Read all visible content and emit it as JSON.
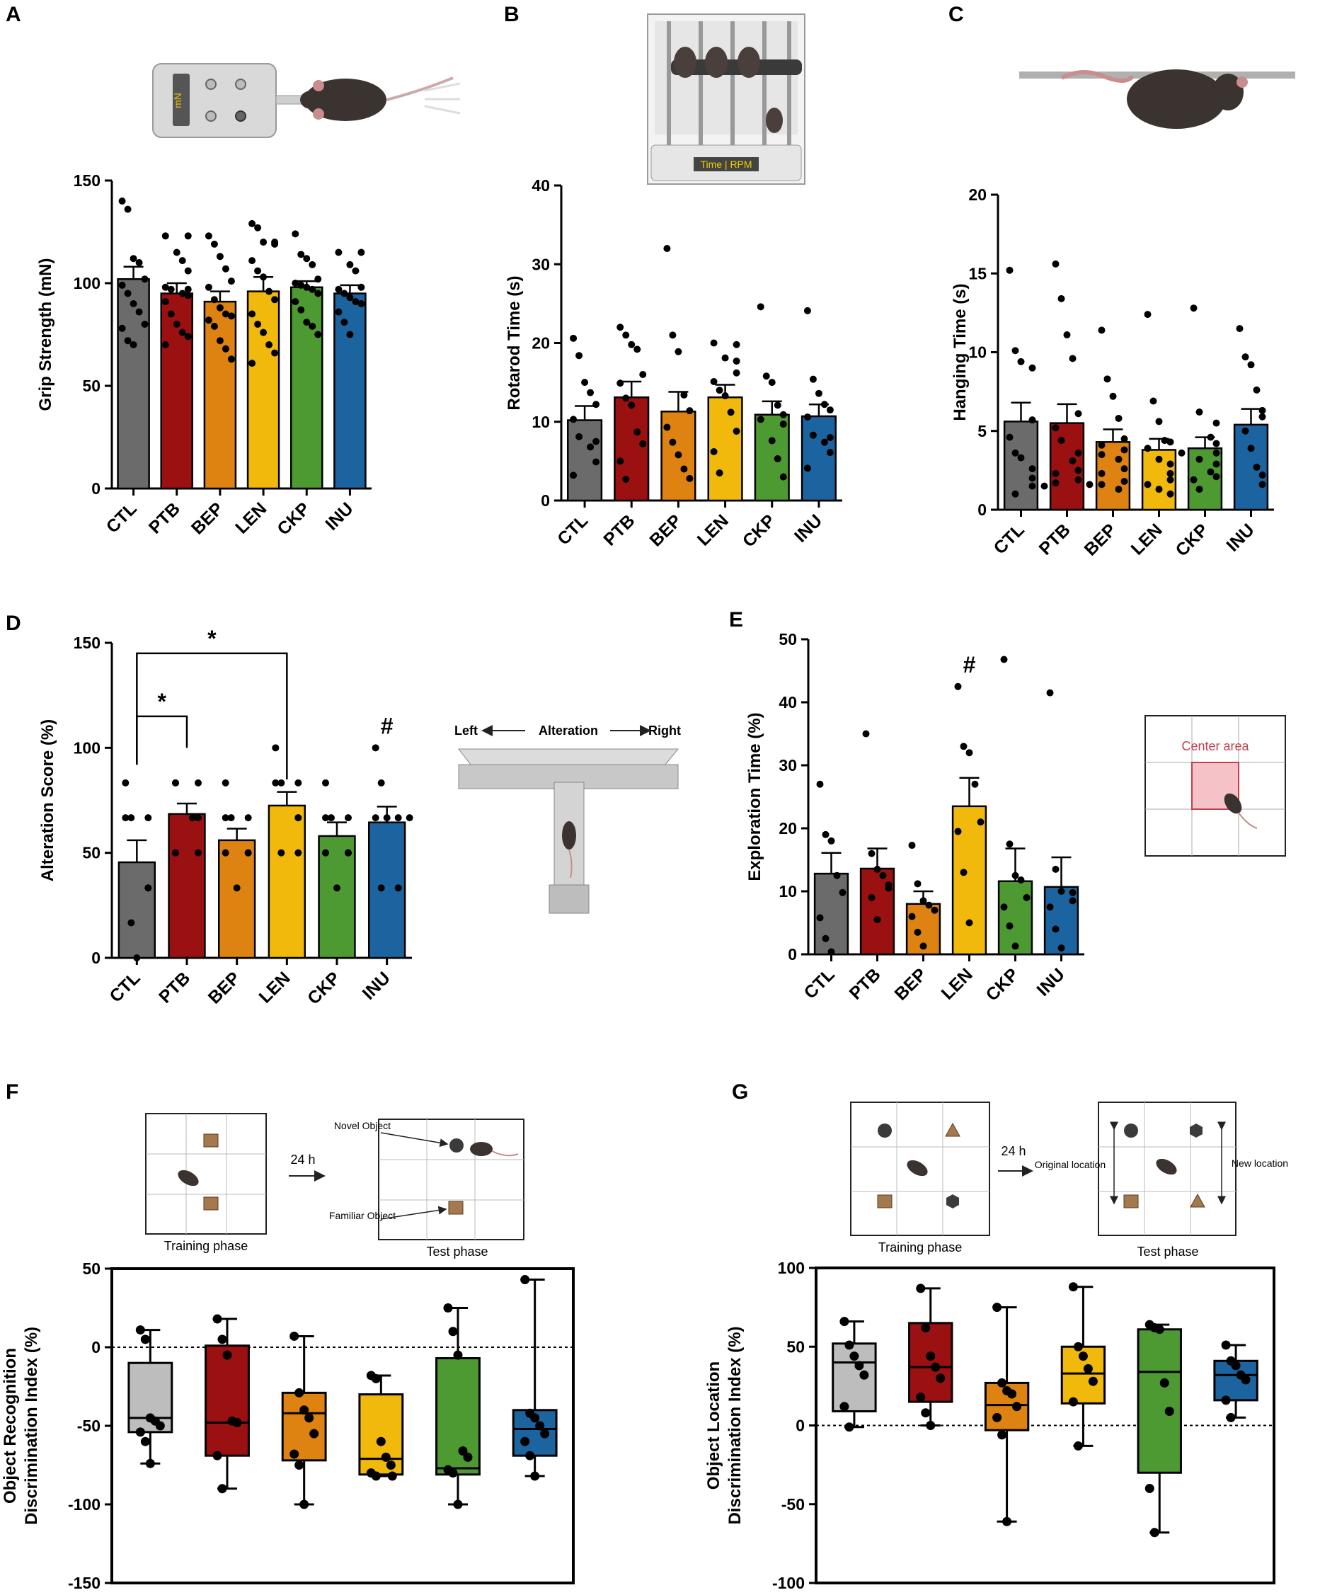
{
  "colors": {
    "CTL": "#6b6b6b",
    "PTB": "#9b1111",
    "BEP": "#de8311",
    "LEN": "#f0b90b",
    "CKP": "#4e9a32",
    "INU": "#1c64a0",
    "CTL_box": "#bdbdbd"
  },
  "illustrations": {
    "grip_display": "mN",
    "rotarod_display": "Time | RPM",
    "tmaze_left": "Left",
    "tmaze_mid": "Alteration",
    "tmaze_right": "Right",
    "openfield_label": "Center area",
    "nor_novel": "Novel Object",
    "nor_familiar": "Familiar Object",
    "nor_delay": "24 h",
    "nor_training": "Training phase",
    "nor_test": "Test phase",
    "olt_original": "Original location",
    "olt_new": "New location",
    "olt_delay": "24 h",
    "olt_training": "Training phase",
    "olt_test": "Test phase"
  },
  "chart_data": [
    {
      "panel": "A",
      "type": "bar",
      "categories": [
        "CTL",
        "PTB",
        "BEP",
        "LEN",
        "CKP",
        "INU"
      ],
      "ylabel": "Grip Strength (mN)",
      "ylim": [
        0,
        150
      ],
      "yticks": [
        0,
        50,
        100,
        150
      ],
      "values": [
        102,
        95,
        91,
        96,
        98,
        95
      ],
      "sem": [
        6,
        5,
        5,
        7,
        3,
        4
      ],
      "points": [
        [
          140,
          136,
          112,
          110,
          102,
          99,
          95,
          90,
          86,
          80,
          78,
          72,
          70
        ],
        [
          123,
          123,
          115,
          111,
          106,
          98,
          97,
          97,
          95,
          94,
          91,
          85,
          80,
          76,
          74,
          70
        ],
        [
          123,
          119,
          113,
          107,
          101,
          98,
          92,
          88,
          85,
          84,
          82,
          79,
          72,
          68,
          63
        ],
        [
          129,
          127,
          120,
          120,
          119,
          111,
          106,
          103,
          96,
          92,
          85,
          80,
          76,
          70,
          66,
          61
        ],
        [
          124,
          114,
          112,
          109,
          102,
          100,
          99,
          98,
          97,
          95,
          91,
          87,
          81,
          79,
          75
        ],
        [
          115,
          115,
          109,
          106,
          98,
          97,
          95,
          93,
          91,
          90,
          86,
          81,
          75
        ]
      ]
    },
    {
      "panel": "B",
      "type": "bar",
      "categories": [
        "CTL",
        "PTB",
        "BEP",
        "LEN",
        "CKP",
        "INU"
      ],
      "ylabel": "Rotarod Time (s)",
      "ylim": [
        0,
        40
      ],
      "yticks": [
        0,
        10,
        20,
        30,
        40
      ],
      "values": [
        10.2,
        13.1,
        11.3,
        13.1,
        10.9,
        10.7
      ],
      "sem": [
        1.8,
        2.0,
        2.5,
        1.6,
        1.7,
        1.5
      ],
      "points": [
        [
          20.6,
          18.4,
          15.0,
          13.7,
          12.2,
          10.3,
          8.1,
          7.5,
          6.8,
          4.9,
          3.2
        ],
        [
          22.0,
          21.0,
          19.8,
          19.2,
          16.0,
          14.9,
          13.0,
          12.1,
          8.7,
          7.2,
          5.0,
          2.7
        ],
        [
          32.0,
          21.0,
          18.9,
          13.4,
          11.4,
          9.3,
          7.4,
          5.8,
          4.0,
          2.8
        ],
        [
          20.0,
          19.8,
          18.1,
          17.7,
          16.2,
          15.1,
          14.0,
          13.3,
          11.2,
          8.8,
          6.2,
          3.5
        ],
        [
          24.6,
          15.8,
          15.0,
          12.1,
          10.9,
          10.3,
          9.7,
          7.6,
          5.3,
          3.0
        ],
        [
          24.1,
          15.4,
          13.6,
          12.2,
          11.5,
          10.6,
          8.3,
          8.0,
          7.4,
          6.1,
          4.1
        ]
      ]
    },
    {
      "panel": "C",
      "type": "bar",
      "categories": [
        "CTL",
        "PTB",
        "BEP",
        "LEN",
        "CKP",
        "INU"
      ],
      "ylabel": "Hanging Time (s)",
      "ylim": [
        0,
        20
      ],
      "yticks": [
        0,
        5,
        10,
        15,
        20
      ],
      "values": [
        5.6,
        5.5,
        4.3,
        3.8,
        3.9,
        5.4
      ],
      "sem": [
        1.2,
        1.2,
        0.8,
        0.7,
        0.7,
        1.0
      ],
      "points": [
        [
          15.2,
          10.1,
          9.4,
          9.0,
          5.7,
          4.6,
          3.6,
          3.3,
          2.6,
          2.0,
          1.5,
          1.0
        ],
        [
          15.6,
          13.4,
          11.1,
          9.6,
          6.1,
          5.2,
          4.4,
          3.6,
          3.1,
          2.5,
          2.3,
          1.9,
          1.7,
          1.6,
          1.5
        ],
        [
          11.4,
          8.3,
          7.2,
          5.8,
          4.5,
          4.1,
          3.8,
          3.5,
          3.2,
          2.6,
          2.3,
          1.8,
          1.6,
          1.3
        ],
        [
          12.4,
          6.9,
          5.6,
          4.4,
          4.3,
          3.9,
          3.6,
          3.2,
          2.9,
          2.3,
          1.9,
          1.6,
          1.3,
          1.0
        ],
        [
          12.8,
          6.2,
          5.5,
          4.6,
          4.2,
          3.6,
          3.2,
          2.9,
          2.4,
          2.1,
          1.9,
          1.3
        ],
        [
          11.5,
          9.7,
          9.2,
          7.6,
          6.3,
          5.9,
          5.0,
          3.9,
          2.7,
          2.2,
          1.6
        ]
      ]
    },
    {
      "panel": "D",
      "type": "bar",
      "categories": [
        "CTL",
        "PTB",
        "BEP",
        "LEN",
        "CKP",
        "INU"
      ],
      "ylabel": "Alteration Score (%)",
      "ylim": [
        0,
        150
      ],
      "yticks": [
        0,
        50,
        100,
        150
      ],
      "values": [
        45.5,
        68.5,
        56,
        72.5,
        58,
        64.5
      ],
      "sem": [
        10.5,
        5,
        5.5,
        6.5,
        6.5,
        7.5
      ],
      "points": [
        [
          83.3,
          66.7,
          66.7,
          66.7,
          33.3,
          33.3,
          16.7,
          0
        ],
        [
          83.3,
          83.3,
          83.3,
          66.7,
          66.7,
          50,
          50,
          50
        ],
        [
          83.3,
          66.7,
          66.7,
          66.7,
          50,
          50,
          50,
          33.3
        ],
        [
          100,
          83.3,
          83.3,
          83.3,
          66.7,
          66.7,
          50,
          50
        ],
        [
          83.3,
          66.7,
          66.7,
          66.7,
          50,
          50,
          50,
          33.3
        ],
        [
          100,
          83.3,
          66.7,
          66.7,
          66.7,
          66.7,
          33.3,
          33.3
        ]
      ],
      "significance": [
        {
          "from": "CTL",
          "to": "PTB",
          "label": "*"
        },
        {
          "from": "CTL",
          "to": "LEN",
          "label": "*"
        },
        {
          "at": "INU",
          "label": "#"
        }
      ]
    },
    {
      "panel": "E",
      "type": "bar",
      "categories": [
        "CTL",
        "PTB",
        "BEP",
        "LEN",
        "CKP",
        "INU"
      ],
      "ylabel": "Exploration Time (%)",
      "ylim": [
        0,
        50
      ],
      "yticks": [
        0,
        10,
        20,
        30,
        40,
        50
      ],
      "values": [
        12.8,
        13.6,
        8.0,
        23.5,
        11.6,
        10.7
      ],
      "sem": [
        3.3,
        3.2,
        2.0,
        4.5,
        5.2,
        4.7
      ],
      "points": [
        [
          27.0,
          19.0,
          18.0,
          12.5,
          9.8,
          5.8,
          2.5,
          0.4
        ],
        [
          35.0,
          16.0,
          13.5,
          12.5,
          11.0,
          10.5,
          9.0,
          5.5
        ],
        [
          17.3,
          11.2,
          8.5,
          7.8,
          7.0,
          6.0,
          3.5,
          1.3
        ],
        [
          42.5,
          33.0,
          32.0,
          27.0,
          21.0,
          19.5,
          13.0,
          5.0
        ],
        [
          46.8,
          17.5,
          12.5,
          11.8,
          9.0,
          7.5,
          4.5,
          1.3
        ],
        [
          41.5,
          13.5,
          10.0,
          9.8,
          8.5,
          7.5,
          4.0,
          1.0
        ]
      ],
      "significance": [
        {
          "at": "LEN",
          "label": "#"
        }
      ]
    },
    {
      "panel": "F",
      "type": "box",
      "categories": [
        "CTL",
        "PTB",
        "BEP",
        "LEN",
        "CKP",
        "INU"
      ],
      "ylabel": "Object Recognition\nDiscrimination Index (%)",
      "ylim": [
        -150,
        50
      ],
      "yticks": [
        -150,
        -100,
        -50,
        0,
        50
      ],
      "refline": 0,
      "boxes": [
        {
          "min": -74,
          "q1": -54,
          "median": -45,
          "q3": -10,
          "max": 11
        },
        {
          "min": -90,
          "q1": -69,
          "median": -48,
          "q3": 1,
          "max": 18
        },
        {
          "min": -100,
          "q1": -72,
          "median": -42,
          "q3": -29,
          "max": 7
        },
        {
          "min": -82,
          "q1": -81,
          "median": -71,
          "q3": -30,
          "max": -18
        },
        {
          "min": -100,
          "q1": -81,
          "median": -77,
          "q3": -7,
          "max": 25
        },
        {
          "min": -82,
          "q1": -69,
          "median": -52,
          "q3": -40,
          "max": 43
        }
      ],
      "points": [
        [
          11,
          5,
          -45,
          -47,
          -50,
          -54,
          -60,
          -74
        ],
        [
          18,
          5,
          -5,
          -47,
          -48,
          -69,
          -90
        ],
        [
          7,
          -29,
          -40,
          -45,
          -55,
          -68,
          -75,
          -100
        ],
        [
          -18,
          -20,
          -60,
          -70,
          -75,
          -80,
          -82,
          -82
        ],
        [
          25,
          10,
          -5,
          -66,
          -70,
          -78,
          -80,
          -100
        ],
        [
          43,
          -42,
          -45,
          -50,
          -55,
          -60,
          -69,
          -82
        ]
      ]
    },
    {
      "panel": "G",
      "type": "box",
      "categories": [
        "CTL",
        "PTB",
        "BEP",
        "LEN",
        "CKP",
        "INU"
      ],
      "ylabel": "Object Location\nDiscrimination Index (%)",
      "ylim": [
        -100,
        100
      ],
      "yticks": [
        -100,
        -50,
        0,
        50,
        100
      ],
      "refline": 0,
      "boxes": [
        {
          "min": -1,
          "q1": 9,
          "median": 40,
          "q3": 52,
          "max": 66
        },
        {
          "min": 0,
          "q1": 15,
          "median": 37,
          "q3": 65,
          "max": 87
        },
        {
          "min": -61,
          "q1": -3,
          "median": 13,
          "q3": 27,
          "max": 75
        },
        {
          "min": -13,
          "q1": 14,
          "median": 33,
          "q3": 50,
          "max": 88
        },
        {
          "min": -68,
          "q1": -30,
          "median": 34,
          "q3": 61,
          "max": 64
        },
        {
          "min": 5,
          "q1": 16,
          "median": 32,
          "q3": 41,
          "max": 51
        }
      ],
      "points": [
        [
          66,
          51,
          44,
          38,
          32,
          12,
          -1
        ],
        [
          87,
          62,
          44,
          37,
          30,
          18,
          8,
          0
        ],
        [
          75,
          27,
          22,
          20,
          12,
          5,
          -6,
          -61
        ],
        [
          88,
          50,
          44,
          36,
          28,
          15,
          -13
        ],
        [
          64,
          62,
          61,
          27,
          9,
          -40,
          -68
        ],
        [
          51,
          41,
          38,
          32,
          29,
          16,
          5
        ]
      ]
    }
  ]
}
